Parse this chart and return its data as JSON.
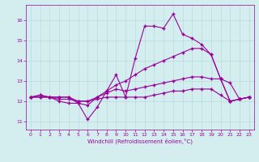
{
  "xlabel": "Windchill (Refroidissement éolien,°C)",
  "background_color": "#d4eef0",
  "line_color": "#990099",
  "hours": [
    0,
    1,
    2,
    3,
    4,
    5,
    6,
    7,
    8,
    9,
    10,
    11,
    12,
    13,
    14,
    15,
    16,
    17,
    18,
    19,
    20,
    21,
    22,
    23
  ],
  "seriesA": [
    12.2,
    12.3,
    12.2,
    12.2,
    12.2,
    11.9,
    11.1,
    11.7,
    12.5,
    13.3,
    12.2,
    14.1,
    15.7,
    15.7,
    15.6,
    16.3,
    15.3,
    15.1,
    14.8,
    14.3,
    13.1,
    12.0,
    12.1,
    12.2
  ],
  "seriesB": [
    12.2,
    12.3,
    12.2,
    12.2,
    12.2,
    12.0,
    12.0,
    12.2,
    12.5,
    12.8,
    13.0,
    13.3,
    13.6,
    13.8,
    14.0,
    14.2,
    14.4,
    14.6,
    14.6,
    14.3,
    13.1,
    12.0,
    12.1,
    12.2
  ],
  "seriesC": [
    12.2,
    12.2,
    12.2,
    12.0,
    11.9,
    11.9,
    11.8,
    12.2,
    12.4,
    12.6,
    12.5,
    12.6,
    12.7,
    12.8,
    12.9,
    13.0,
    13.1,
    13.2,
    13.2,
    13.1,
    13.1,
    12.9,
    12.1,
    12.2
  ],
  "seriesD": [
    12.2,
    12.2,
    12.2,
    12.1,
    12.1,
    12.0,
    12.0,
    12.1,
    12.2,
    12.2,
    12.2,
    12.2,
    12.2,
    12.3,
    12.4,
    12.5,
    12.5,
    12.6,
    12.6,
    12.6,
    12.3,
    12.0,
    12.1,
    12.2
  ],
  "ylim": [
    10.6,
    16.75
  ],
  "yticks": [
    11,
    12,
    13,
    14,
    15,
    16
  ],
  "xlim": [
    -0.5,
    23.5
  ],
  "xticks": [
    0,
    1,
    2,
    3,
    4,
    5,
    6,
    7,
    8,
    9,
    10,
    11,
    12,
    13,
    14,
    15,
    16,
    17,
    18,
    19,
    20,
    21,
    22,
    23
  ],
  "figsize": [
    3.2,
    2.0
  ],
  "dpi": 100
}
